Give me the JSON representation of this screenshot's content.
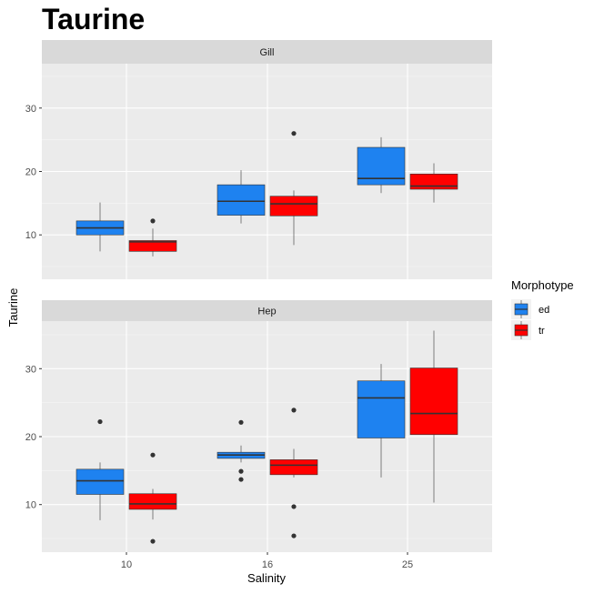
{
  "chart_data": {
    "type": "boxplot",
    "title": "Taurine",
    "xlabel": "Salinity",
    "ylabel": "Taurine",
    "categories": [
      "10",
      "16",
      "25"
    ],
    "ylim": [
      3,
      37
    ],
    "yticks": [
      10,
      20,
      30
    ],
    "grid": true,
    "legend": {
      "title": "Morphotype",
      "position": "right",
      "entries": [
        {
          "label": "ed",
          "color": "#1E82F0"
        },
        {
          "label": "tr",
          "color": "#FF0000"
        }
      ]
    },
    "panels": [
      {
        "strip": "Gill",
        "boxes": [
          {
            "category": "10",
            "group": "ed",
            "min": 7.4,
            "q1": 10.0,
            "median": 11.1,
            "q3": 12.2,
            "max": 15.1,
            "outliers": []
          },
          {
            "category": "10",
            "group": "tr",
            "min": 6.6,
            "q1": 7.4,
            "median": 8.9,
            "q3": 9.1,
            "max": 11.0,
            "outliers": [
              12.2
            ]
          },
          {
            "category": "16",
            "group": "ed",
            "min": 11.8,
            "q1": 13.1,
            "median": 15.3,
            "q3": 17.9,
            "max": 20.2,
            "outliers": []
          },
          {
            "category": "16",
            "group": "tr",
            "min": 8.4,
            "q1": 13.0,
            "median": 14.9,
            "q3": 16.1,
            "max": 17.0,
            "outliers": [
              26.0
            ]
          },
          {
            "category": "25",
            "group": "ed",
            "min": 16.6,
            "q1": 17.9,
            "median": 18.9,
            "q3": 23.8,
            "max": 25.4,
            "outliers": []
          },
          {
            "category": "25",
            "group": "tr",
            "min": 15.1,
            "q1": 17.2,
            "median": 17.7,
            "q3": 19.6,
            "max": 21.3,
            "outliers": []
          }
        ]
      },
      {
        "strip": "Hep",
        "boxes": [
          {
            "category": "10",
            "group": "ed",
            "min": 7.7,
            "q1": 11.5,
            "median": 13.5,
            "q3": 15.2,
            "max": 16.2,
            "outliers": [
              22.2
            ]
          },
          {
            "category": "10",
            "group": "tr",
            "min": 7.8,
            "q1": 9.3,
            "median": 10.1,
            "q3": 11.6,
            "max": 12.3,
            "outliers": [
              17.3,
              4.6
            ]
          },
          {
            "category": "16",
            "group": "ed",
            "min": 16.2,
            "q1": 16.8,
            "median": 17.3,
            "q3": 17.7,
            "max": 18.7,
            "outliers": [
              22.1,
              14.9,
              13.7
            ]
          },
          {
            "category": "16",
            "group": "tr",
            "min": 14.0,
            "q1": 14.4,
            "median": 15.8,
            "q3": 16.6,
            "max": 18.2,
            "outliers": [
              23.9,
              9.7,
              5.4
            ]
          },
          {
            "category": "25",
            "group": "ed",
            "min": 14.0,
            "q1": 19.8,
            "median": 25.7,
            "q3": 28.2,
            "max": 30.7,
            "outliers": []
          },
          {
            "category": "25",
            "group": "tr",
            "min": 10.3,
            "q1": 20.3,
            "median": 23.4,
            "q3": 30.1,
            "max": 35.6,
            "outliers": []
          }
        ]
      }
    ]
  }
}
